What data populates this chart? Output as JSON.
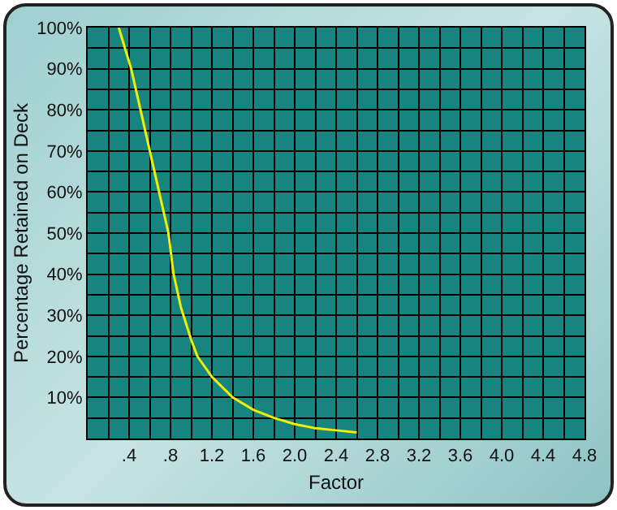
{
  "chart_data": {
    "type": "line",
    "xlabel": "Factor",
    "ylabel": "Percentage Retained on Deck",
    "x": [
      0.3,
      0.42,
      0.51,
      0.6,
      0.69,
      0.78,
      0.83,
      0.9,
      1.0,
      1.06,
      1.2,
      1.4,
      1.6,
      1.8,
      2.0,
      2.2,
      2.4,
      2.6
    ],
    "series": [
      {
        "color": "#f0f000",
        "values": [
          100,
          90,
          80,
          70,
          60,
          50,
          40,
          32,
          24,
          20,
          15,
          10,
          7,
          5,
          3.5,
          2.5,
          2,
          1.5
        ]
      }
    ],
    "xlim": [
      0,
      4.8
    ],
    "xticks": [
      {
        "value": 0,
        "label": null
      },
      {
        "value": 0.2,
        "label": null
      },
      {
        "value": 0.4,
        "label": ".4"
      },
      {
        "value": 0.6,
        "label": null
      },
      {
        "value": 0.8,
        "label": ".8"
      },
      {
        "value": 1.0,
        "label": null
      },
      1.2,
      {
        "value": 1.4,
        "label": null
      },
      1.6,
      {
        "value": 1.8,
        "label": null
      },
      {
        "value": 2.0,
        "label": "2.0"
      },
      {
        "value": 2.2,
        "label": null
      },
      2.4,
      {
        "value": 2.6,
        "label": null
      },
      2.8,
      {
        "value": 3.0,
        "label": null
      },
      3.2,
      {
        "value": 3.4,
        "label": null
      },
      3.6,
      {
        "value": 3.8,
        "label": null
      },
      {
        "value": 4.0,
        "label": "4.0"
      },
      {
        "value": 4.2,
        "label": null
      },
      4.4,
      {
        "value": 4.6,
        "label": null
      },
      4.8
    ],
    "ylim": [
      0,
      100
    ],
    "yticks": [
      {
        "value": 0,
        "label": null
      },
      {
        "value": 5,
        "label": null
      },
      {
        "value": 10,
        "label": "10%"
      },
      {
        "value": 15,
        "label": null
      },
      {
        "value": 20,
        "label": "20%"
      },
      {
        "value": 25,
        "label": null
      },
      {
        "value": 30,
        "label": "30%"
      },
      {
        "value": 35,
        "label": null
      },
      {
        "value": 40,
        "label": "40%"
      },
      {
        "value": 45,
        "label": null
      },
      {
        "value": 50,
        "label": "50%"
      },
      {
        "value": 55,
        "label": null
      },
      {
        "value": 60,
        "label": "60%"
      },
      {
        "value": 65,
        "label": null
      },
      {
        "value": 70,
        "label": "70%"
      },
      {
        "value": 75,
        "label": null
      },
      {
        "value": 80,
        "label": "80%"
      },
      {
        "value": 85,
        "label": null
      },
      {
        "value": 90,
        "label": "90%"
      },
      {
        "value": 95,
        "label": null
      },
      {
        "value": 100,
        "label": "100%"
      }
    ],
    "grid": true,
    "marker": "none",
    "line_style": "solid"
  }
}
